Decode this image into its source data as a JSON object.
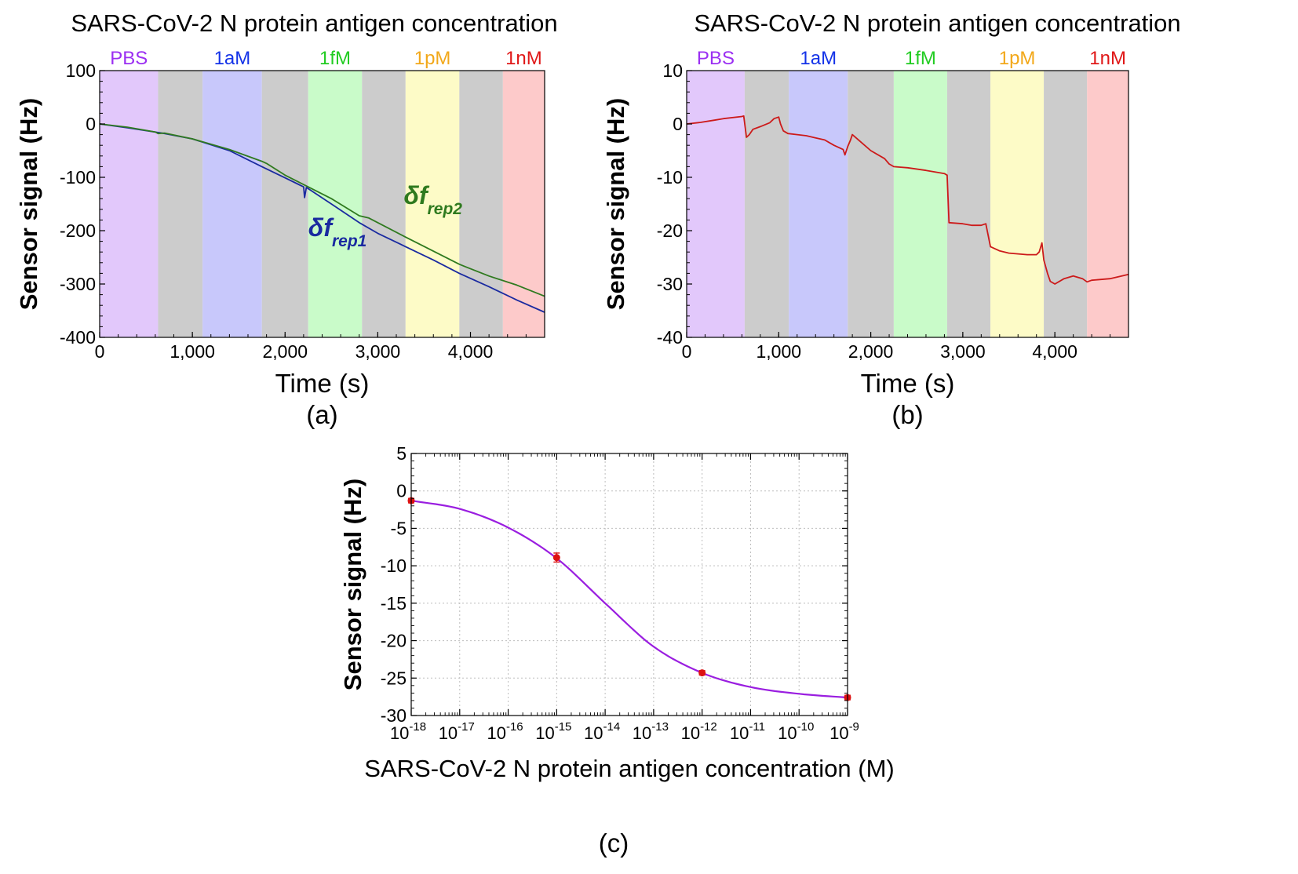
{
  "figure": {
    "panels": [
      "(a)",
      "(b)",
      "(c)"
    ]
  },
  "colors": {
    "phase_bands": {
      "PBS": "#e2c8fb",
      "buffer": "#cccccc",
      "1aM": "#c8c8fb",
      "1fM": "#c9fbc9",
      "1pM": "#fdfbc7",
      "1nM": "#fdcaca"
    },
    "phase_labels": {
      "PBS": "#9b2ff2",
      "1aM": "#1433e8",
      "1fM": "#22cc22",
      "1pM": "#f2a81a",
      "1nM": "#e01818"
    },
    "rep1": "#1a2aa0",
    "rep2": "#2f7a1f",
    "panel_b": "#cc1a1a",
    "fit": "#9a1ee0",
    "points": "#dd1111"
  },
  "chart_data": [
    {
      "type": "line",
      "panel": "(a)",
      "title": "SARS-CoV-2 N protein antigen concentration",
      "xlabel": "Time (s)",
      "ylabel": "Sensor signal (Hz)",
      "xlim": [
        0,
        4800
      ],
      "ylim": [
        -400,
        100
      ],
      "xticks": [
        0,
        1000,
        2000,
        3000,
        4000
      ],
      "xtick_labels": [
        "0",
        "1,000",
        "2,000",
        "3,000",
        "4,000"
      ],
      "yticks": [
        -400,
        -300,
        -200,
        -100,
        0,
        100
      ],
      "ytick_labels": [
        "-400",
        "-300",
        "-200",
        "-100",
        "0",
        "100"
      ],
      "grid": false,
      "phases": [
        {
          "label": "PBS",
          "start": 0,
          "end": 630
        },
        {
          "label": "",
          "start": 630,
          "end": 1110
        },
        {
          "label": "1aM",
          "start": 1110,
          "end": 1750
        },
        {
          "label": "",
          "start": 1750,
          "end": 2250
        },
        {
          "label": "1fM",
          "start": 2250,
          "end": 2830
        },
        {
          "label": "",
          "start": 2830,
          "end": 3300
        },
        {
          "label": "1pM",
          "start": 3300,
          "end": 3880
        },
        {
          "label": "",
          "start": 3880,
          "end": 4350
        },
        {
          "label": "1nM",
          "start": 4350,
          "end": 4800
        }
      ],
      "series": [
        {
          "name": "δf rep1",
          "name_main": "δf",
          "name_sub": "rep1",
          "x": [
            0,
            300,
            630,
            700,
            1000,
            1400,
            1750,
            2000,
            2200,
            2210,
            2230,
            2500,
            2800,
            3000,
            3300,
            3600,
            3880,
            4200,
            4500,
            4800
          ],
          "y": [
            0,
            -7,
            -16,
            -18,
            -28,
            -50,
            -80,
            -101,
            -118,
            -138,
            -119,
            -150,
            -185,
            -205,
            -230,
            -255,
            -280,
            -305,
            -330,
            -353
          ]
        },
        {
          "name": "δf rep2",
          "name_main": "δf",
          "name_sub": "rep2",
          "x": [
            0,
            300,
            600,
            630,
            700,
            1000,
            1400,
            1750,
            1800,
            2000,
            2500,
            2800,
            2900,
            3300,
            3880,
            3950,
            4200,
            4500,
            4800
          ],
          "y": [
            0,
            -6,
            -15,
            -18,
            -17,
            -28,
            -48,
            -70,
            -74,
            -96,
            -140,
            -172,
            -176,
            -212,
            -263,
            -268,
            -285,
            -302,
            -323
          ]
        }
      ]
    },
    {
      "type": "line",
      "panel": "(b)",
      "title": "SARS-CoV-2 N protein antigen concentration",
      "xlabel": "Time (s)",
      "ylabel": "Sensor signal (Hz)",
      "xlim": [
        0,
        4800
      ],
      "ylim": [
        -40,
        10
      ],
      "xticks": [
        0,
        1000,
        2000,
        3000,
        4000
      ],
      "xtick_labels": [
        "0",
        "1,000",
        "2,000",
        "3,000",
        "4,000"
      ],
      "yticks": [
        -40,
        -30,
        -20,
        -10,
        0,
        10
      ],
      "ytick_labels": [
        "-40",
        "-30",
        "-20",
        "-10",
        "0",
        "10"
      ],
      "grid": false,
      "phases": [
        {
          "label": "PBS",
          "start": 0,
          "end": 630
        },
        {
          "label": "",
          "start": 630,
          "end": 1110
        },
        {
          "label": "1aM",
          "start": 1110,
          "end": 1750
        },
        {
          "label": "",
          "start": 1750,
          "end": 2250
        },
        {
          "label": "1fM",
          "start": 2250,
          "end": 2830
        },
        {
          "label": "",
          "start": 2830,
          "end": 3300
        },
        {
          "label": "1pM",
          "start": 3300,
          "end": 3880
        },
        {
          "label": "",
          "start": 3880,
          "end": 4350
        },
        {
          "label": "1nM",
          "start": 4350,
          "end": 4800
        }
      ],
      "series": [
        {
          "name": "",
          "x": [
            0,
            150,
            300,
            400,
            600,
            620,
            650,
            680,
            720,
            800,
            900,
            950,
            1000,
            1020,
            1050,
            1100,
            1300,
            1400,
            1500,
            1550,
            1600,
            1700,
            1720,
            1750,
            1780,
            1800,
            1900,
            2000,
            2150,
            2200,
            2250,
            2400,
            2600,
            2800,
            2830,
            2850,
            3000,
            3100,
            3200,
            3250,
            3300,
            3400,
            3500,
            3700,
            3800,
            3830,
            3860,
            3880,
            3920,
            3950,
            4000,
            4100,
            4200,
            4300,
            4350,
            4400,
            4600,
            4800
          ],
          "y": [
            0,
            0.3,
            0.7,
            1.0,
            1.4,
            1.5,
            -2.5,
            -2.0,
            -1.0,
            -0.5,
            0.2,
            1.0,
            1.3,
            0,
            -1.3,
            -1.8,
            -2.2,
            -2.6,
            -3.0,
            -3.5,
            -4.0,
            -4.8,
            -5.8,
            -4.2,
            -3.0,
            -2.0,
            -3.5,
            -5.0,
            -6.5,
            -7.5,
            -8.0,
            -8.2,
            -8.7,
            -9.3,
            -9.6,
            -18.5,
            -18.7,
            -19.0,
            -19.0,
            -18.7,
            -23.0,
            -23.8,
            -24.2,
            -24.5,
            -24.5,
            -24.0,
            -22.3,
            -25.5,
            -28.0,
            -29.5,
            -30.0,
            -29.0,
            -28.5,
            -29.0,
            -29.6,
            -29.3,
            -29.0,
            -28.2
          ]
        }
      ]
    },
    {
      "type": "scatter",
      "panel": "(c)",
      "xlabel": "SARS-CoV-2 N protein antigen concentration (M)",
      "ylabel": "Sensor signal (Hz)",
      "xscale": "log",
      "xlim": [
        1e-18,
        1e-09
      ],
      "ylim": [
        -30,
        5
      ],
      "xtick_exponents": [
        -18,
        -17,
        -16,
        -15,
        -14,
        -13,
        -12,
        -11,
        -10,
        -9
      ],
      "xtick_base": "10",
      "yticks": [
        -30,
        -25,
        -20,
        -15,
        -10,
        -5,
        0,
        5
      ],
      "ytick_labels": [
        "-30",
        "-25",
        "-20",
        "-15",
        "-10",
        "-5",
        "0",
        "5"
      ],
      "grid": true,
      "points": {
        "x": [
          1e-18,
          1e-15,
          1e-12,
          1e-09
        ],
        "y": [
          -1.3,
          -8.9,
          -24.3,
          -27.6
        ],
        "yerr": [
          0.3,
          0.6,
          0.3,
          0.3
        ]
      },
      "fit": {
        "x": [
          1e-18,
          1e-17,
          1e-16,
          1e-15,
          1e-14,
          1e-13,
          1e-12,
          1e-11,
          1e-10,
          1e-09
        ],
        "y": [
          -1.3,
          -2.4,
          -4.9,
          -9.0,
          -15.0,
          -20.8,
          -24.3,
          -26.2,
          -27.1,
          -27.6
        ]
      }
    }
  ]
}
